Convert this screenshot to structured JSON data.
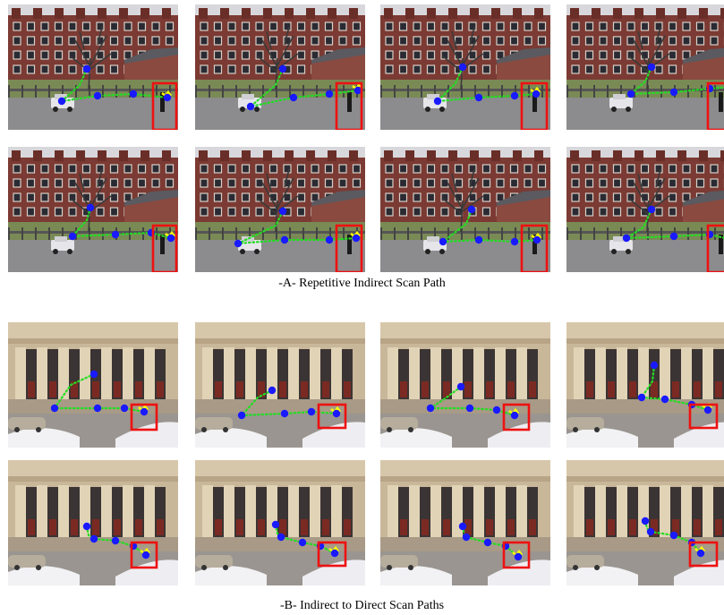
{
  "figure": {
    "panel_a": {
      "caption": "-A- Repetitive Indirect Scan Path",
      "scene": "brick-building-with-car-and-pedestrian",
      "count": 8
    },
    "panel_b": {
      "caption": "-B- Indirect to Direct Scan Paths",
      "scene": "columned-building-with-car-and-snow",
      "count": 8
    },
    "colors": {
      "fixation": "#1a1aff",
      "path": "#22dd22",
      "highlight": "#ffff00",
      "target_box": "#ee1111"
    }
  }
}
